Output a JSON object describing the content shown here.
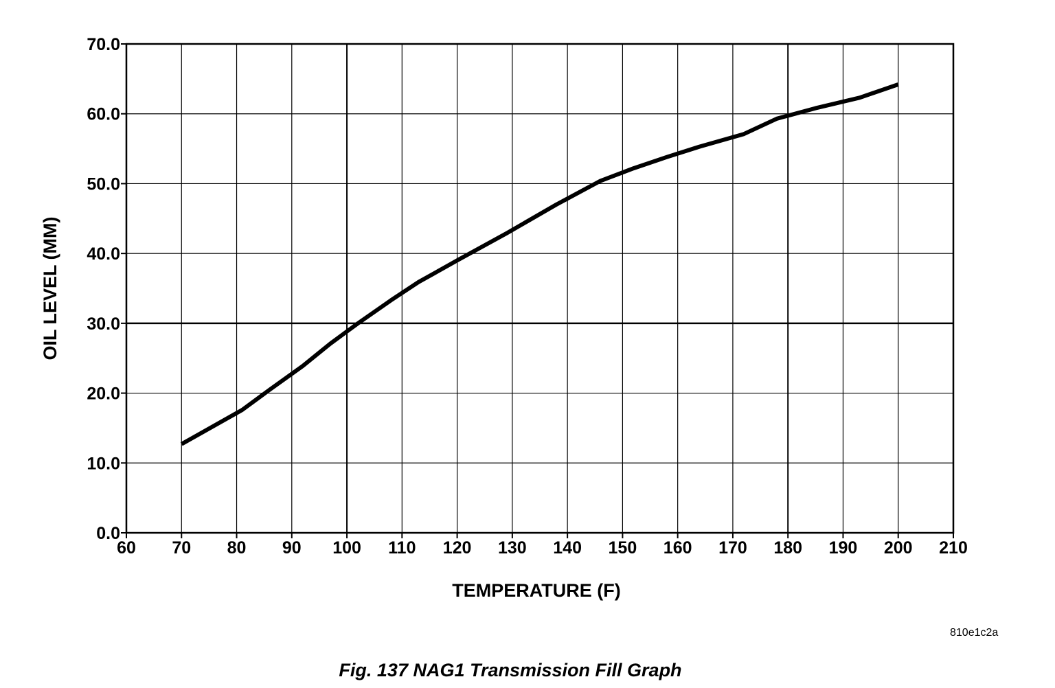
{
  "chart_data": {
    "type": "line",
    "title": "",
    "xlabel": "TEMPERATURE  (F)",
    "ylabel": "OIL LEVEL (MM)",
    "xlim": [
      60,
      210
    ],
    "ylim": [
      0,
      70
    ],
    "x_ticks": [
      "60",
      "70",
      "80",
      "90",
      "100",
      "110",
      "120",
      "130",
      "140",
      "150",
      "160",
      "170",
      "180",
      "190",
      "200",
      "210"
    ],
    "y_ticks": [
      "0.0",
      "10.0",
      "20.0",
      "30.0",
      "40.0",
      "50.0",
      "60.0",
      "70.0"
    ],
    "grid": true,
    "legend": "none",
    "series": [
      {
        "x": [
          70,
          81,
          86,
          92,
          97,
          102,
          108,
          113,
          120,
          129,
          138,
          146,
          152,
          158,
          164,
          172,
          178,
          185,
          193,
          200
        ],
        "y": [
          12.7,
          17.6,
          20.5,
          23.9,
          27.1,
          30.0,
          33.3,
          35.9,
          39.0,
          42.9,
          47.0,
          50.4,
          52.2,
          53.8,
          55.3,
          57.1,
          59.3,
          60.8,
          62.3,
          64.2
        ],
        "color": "#000000"
      }
    ]
  },
  "figure": {
    "code": "810e1c2a",
    "caption": "Fig. 137 NAG1 Transmission Fill Graph"
  }
}
